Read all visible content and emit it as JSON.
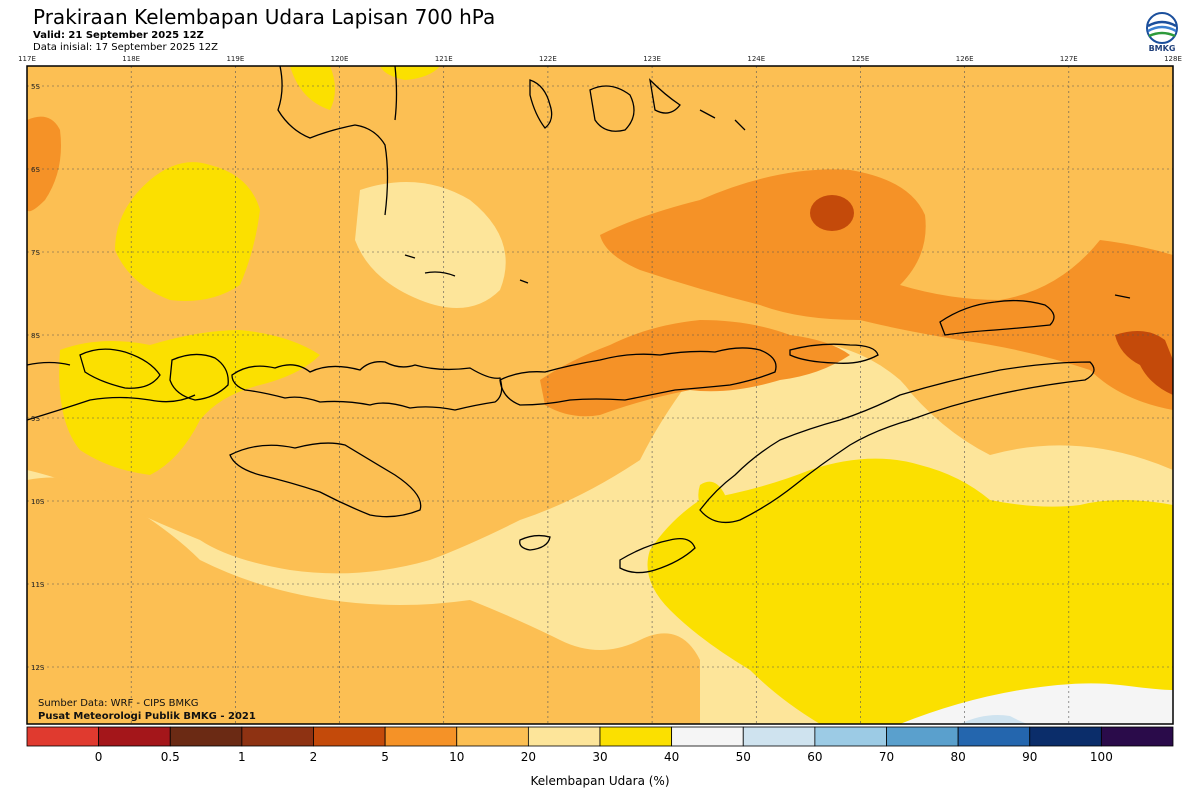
{
  "header": {
    "title": "Prakiraan Kelembapan Udara Lapisan 700 hPa",
    "valid": "Valid: 21 September 2025 12Z",
    "initial": "Data inisial: 17 September 2025 12Z"
  },
  "logo": {
    "text": "BMKG",
    "icon": "bmkg-logo"
  },
  "map": {
    "lon_labels": [
      "117E",
      "118E",
      "119E",
      "120E",
      "121E",
      "122E",
      "123E",
      "124E",
      "125E",
      "126E",
      "127E",
      "128E"
    ],
    "lat_labels": [
      "5S",
      "6S",
      "7S",
      "8S",
      "9S",
      "10S",
      "11S",
      "12S"
    ],
    "source_line1": "Sumber Data: WRF - CIPS BMKG",
    "source_line2": "Pusat Meteorologi Publik BMKG - 2021"
  },
  "legend": {
    "values": [
      "0",
      "0.5",
      "1",
      "2",
      "5",
      "10",
      "20",
      "30",
      "40",
      "50",
      "60",
      "70",
      "80",
      "90",
      "100"
    ],
    "colors": [
      "#e03a2f",
      "#a4161a",
      "#6b2a14",
      "#8e3212",
      "#c44a0a",
      "#f59227",
      "#fcbf53",
      "#fde59a",
      "#fbe000",
      "#f5f5f5",
      "#cfe3ef",
      "#9ccbe5",
      "#5aa0cd",
      "#2466ae",
      "#0b2d6a",
      "#2a0b4a"
    ],
    "title": "Kelembapan Udara (%)"
  }
}
